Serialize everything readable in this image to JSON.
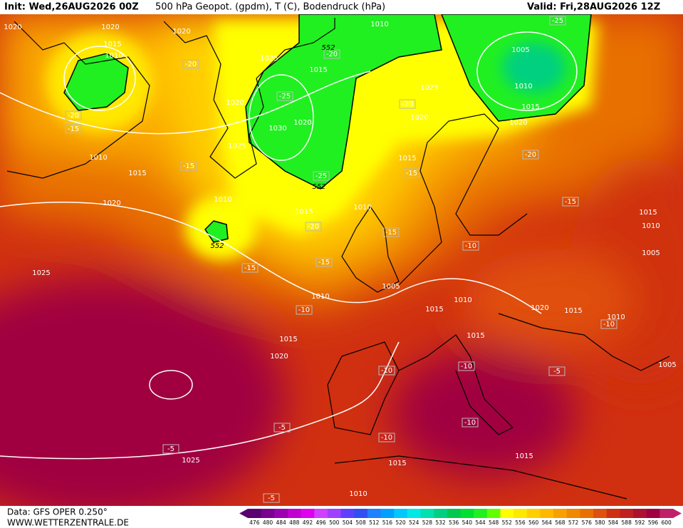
{
  "header": {
    "init": "Init: Wed,26AUG2026 00Z",
    "title": "500 hPa Geopot. (gpdm), T (C), Bodendruck (hPa)",
    "valid": "Valid: Fri,28AUG2026 12Z"
  },
  "footer": {
    "data_source": "Data: GFS OPER 0.250°",
    "website": "WWW.WETTERZENTRALE.DE"
  },
  "map": {
    "pressure_labels": [
      "1020",
      "1020",
      "1015",
      "1010",
      "1020",
      "1025",
      "1015",
      "1010",
      "1005",
      "1010",
      "1015",
      "1020",
      "1025",
      "1020",
      "1020",
      "1030",
      "1020",
      "1025",
      "1015",
      "1010",
      "1015",
      "1020",
      "1010",
      "1015",
      "1010",
      "1025",
      "1005",
      "1010",
      "1010",
      "1015",
      "1020",
      "1015",
      "1010",
      "1015",
      "1010",
      "1005",
      "1015",
      "1020",
      "1015",
      "1005",
      "1025",
      "1015",
      "1015",
      "1010"
    ],
    "temperature_labels": [
      "-25",
      "-20",
      "-20",
      "-25",
      "-20",
      "-20",
      "-15",
      "-15",
      "-25",
      "-15",
      "-20",
      "-15",
      "-20",
      "-15",
      "-10",
      "-15",
      "-15",
      "-10",
      "-10",
      "-10",
      "-5",
      "-10",
      "-10",
      "-10",
      "-5",
      "-5",
      "-5"
    ],
    "height_labels": [
      "552",
      "552",
      "552"
    ]
  },
  "colorbar": {
    "ticks": [
      476,
      480,
      484,
      488,
      492,
      496,
      500,
      504,
      508,
      512,
      516,
      520,
      524,
      528,
      532,
      536,
      540,
      544,
      548,
      552,
      556,
      560,
      564,
      568,
      572,
      576,
      580,
      584,
      588,
      592,
      596,
      600
    ],
    "colors": [
      "#5a0070",
      "#7a0090",
      "#9a00b0",
      "#c000d0",
      "#e000f0",
      "#d040ff",
      "#a040ff",
      "#6040ff",
      "#3050f0",
      "#2080ff",
      "#00a0ff",
      "#00c8ff",
      "#00e8e8",
      "#00e0b0",
      "#00d080",
      "#00c850",
      "#00e030",
      "#20f020",
      "#60ff00",
      "#ffff00",
      "#ffe800",
      "#ffd000",
      "#ffb800",
      "#f8a000",
      "#f08800",
      "#e87000",
      "#e05010",
      "#d03010",
      "#c02020",
      "#b01030",
      "#a00040",
      "#c0206a"
    ]
  }
}
